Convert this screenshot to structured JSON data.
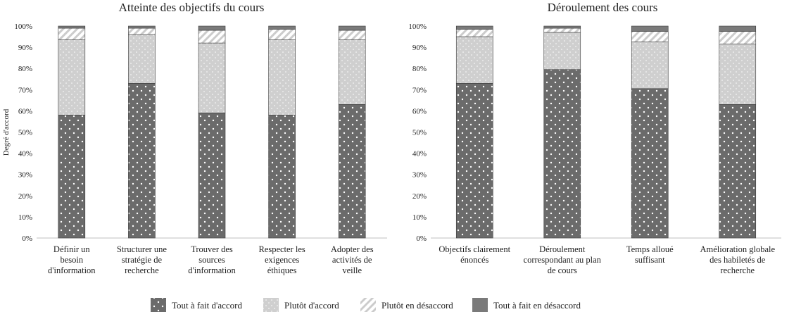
{
  "y_axis_label": "Degré d'accord",
  "legend": [
    {
      "key": "tout_accord",
      "label": "Tout à fait d'accord"
    },
    {
      "key": "plutot_accord",
      "label": "Plutôt d'accord"
    },
    {
      "key": "plutot_desaccord",
      "label": "Plutôt en désaccord"
    },
    {
      "key": "tout_desaccord",
      "label": "Tout à fait en désaccord"
    }
  ],
  "colors": {
    "tout_accord": "#6b6b6b",
    "plutot_accord": "#cfcfcf",
    "plutot_desaccord": "#ffffff",
    "tout_desaccord": "#7a7a7a"
  },
  "chart_data": [
    {
      "type": "bar",
      "stacked": true,
      "percent": true,
      "title": "Atteinte des objectifs du cours",
      "ylabel": "Degré d'accord",
      "ylim": [
        0,
        100
      ],
      "yticks": [
        "0%",
        "10%",
        "20%",
        "30%",
        "40%",
        "50%",
        "60%",
        "70%",
        "80%",
        "90%",
        "100%"
      ],
      "categories": [
        [
          "Définir un",
          "besoin",
          "d'information"
        ],
        [
          "Structurer une",
          "stratégie de",
          "recherche"
        ],
        [
          "Trouver des",
          "sources",
          "d'information"
        ],
        [
          "Respecter les",
          "exigences",
          "éthiques"
        ],
        [
          "Adopter des",
          "activités de",
          "veille"
        ]
      ],
      "series": [
        {
          "name": "Tout à fait d'accord",
          "values": [
            58,
            73,
            59,
            58,
            63
          ]
        },
        {
          "name": "Plutôt d'accord",
          "values": [
            35.5,
            23,
            33,
            35.5,
            30.5
          ]
        },
        {
          "name": "Plutôt en désaccord",
          "values": [
            5.5,
            3,
            6,
            5,
            4.5
          ]
        },
        {
          "name": "Tout à fait en désaccord",
          "values": [
            1,
            1,
            2,
            1.5,
            2
          ]
        }
      ]
    },
    {
      "type": "bar",
      "stacked": true,
      "percent": true,
      "title": "Déroulement des cours",
      "ylim": [
        0,
        100
      ],
      "yticks": [
        "0%",
        "10%",
        "20%",
        "30%",
        "40%",
        "50%",
        "60%",
        "70%",
        "80%",
        "90%",
        "100%"
      ],
      "categories": [
        [
          "Objectifs clairement",
          "énoncés"
        ],
        [
          "Déroulement",
          "correspondant au plan",
          "de cours"
        ],
        [
          "Temps alloué",
          "suffisant"
        ],
        [
          "Amélioration globale",
          "des habiletés de",
          "recherche"
        ]
      ],
      "series": [
        {
          "name": "Tout à fait d'accord",
          "values": [
            73,
            79.5,
            70.5,
            63
          ]
        },
        {
          "name": "Plutôt d'accord",
          "values": [
            22,
            17.5,
            22,
            28.5
          ]
        },
        {
          "name": "Plutôt en désaccord",
          "values": [
            3.5,
            2,
            5,
            6
          ]
        },
        {
          "name": "Tout à fait en désaccord",
          "values": [
            1.5,
            1,
            2.5,
            2.5
          ]
        }
      ]
    }
  ]
}
